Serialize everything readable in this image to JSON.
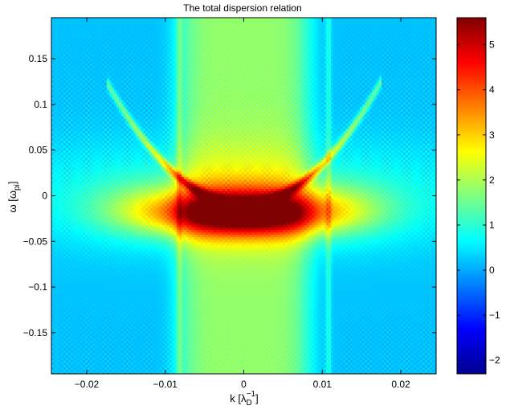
{
  "chart_data": {
    "type": "heatmap",
    "title": "The total dispersion relation",
    "xlabel": {
      "main": "k [λ",
      "sub": "D",
      "sup": "−1",
      "close": "]"
    },
    "ylabel": {
      "main": "ω [ω",
      "sub": "pi",
      "close": "]"
    },
    "xlim": [
      -0.0245,
      0.0245
    ],
    "ylim": [
      -0.195,
      0.195
    ],
    "xticks": [
      -0.02,
      -0.01,
      0,
      0.01,
      0.02
    ],
    "xtick_labels": [
      "−0.02",
      "−0.01",
      "0",
      "0.01",
      "0.02"
    ],
    "yticks": [
      -0.15,
      -0.1,
      -0.05,
      0,
      0.05,
      0.1,
      0.15
    ],
    "ytick_labels": [
      "−0.15",
      "−0.1",
      "−0.05",
      "0",
      "0.05",
      "0.1",
      "0.15"
    ],
    "colorbar": {
      "range": [
        -2.3,
        5.6
      ],
      "ticks": [
        -2,
        -1,
        0,
        1,
        2,
        3,
        4,
        5
      ],
      "tick_labels": [
        "−2",
        "−1",
        "0",
        "1",
        "2",
        "3",
        "4",
        "5"
      ],
      "colormap": "jet"
    },
    "features": {
      "background_level": 0.2,
      "central_band_level": 1.8,
      "vertical_lines_k": [
        -0.0082,
        0.0108
      ],
      "parabola_vertex": [
        0.0,
        -0.01
      ],
      "parabola_branches_end": [
        [
          -0.0165,
          0.11
        ],
        [
          0.0165,
          0.11
        ]
      ],
      "peak_level": 5.4,
      "peak_location": [
        0.0,
        -0.02
      ]
    }
  }
}
